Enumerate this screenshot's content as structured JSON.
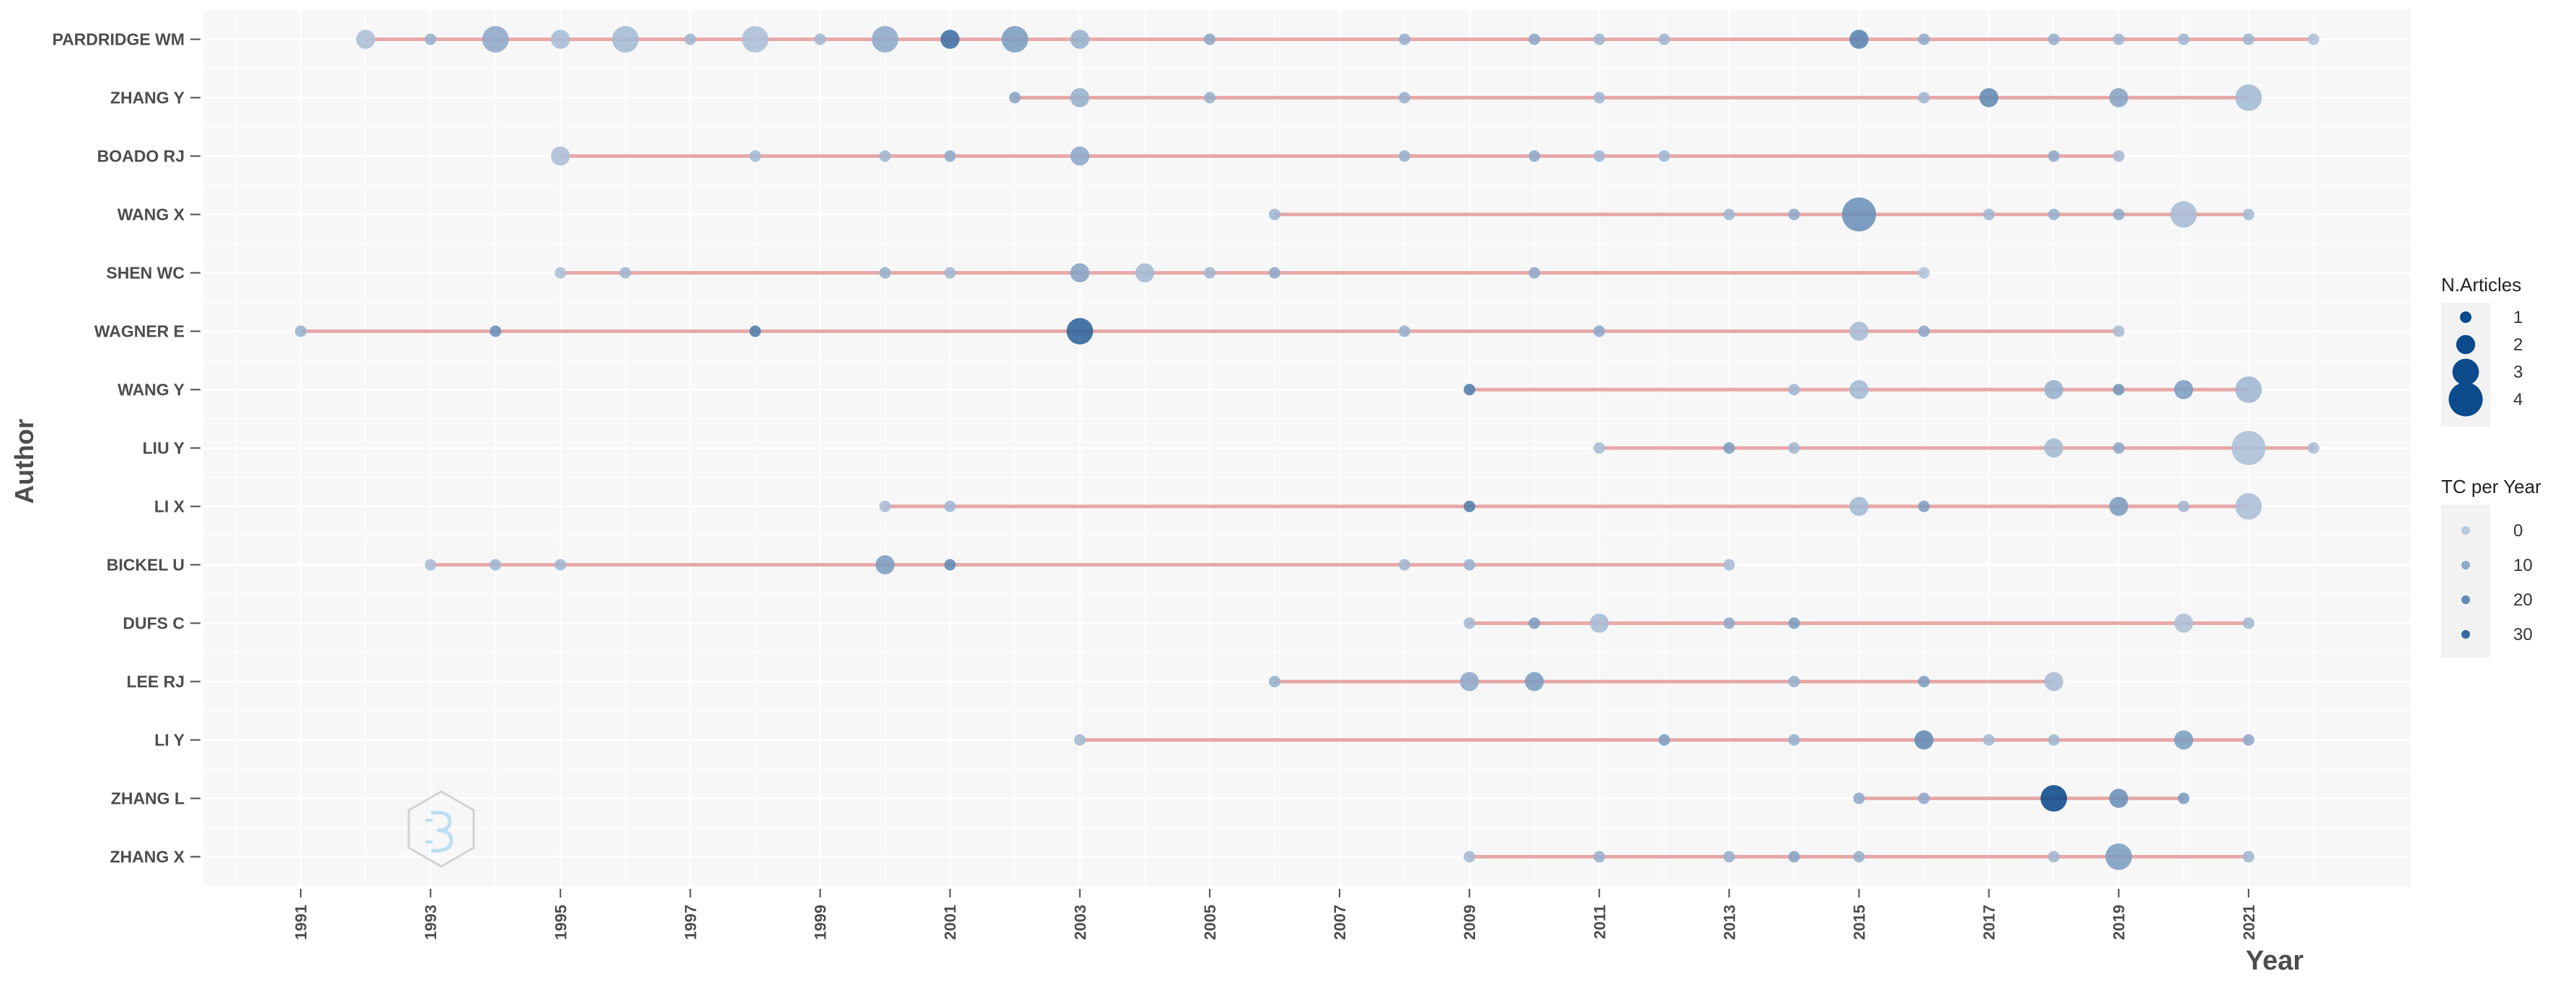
{
  "chart_data": {
    "type": "scatter",
    "title": "",
    "xlabel": "Year",
    "ylabel": "Author",
    "xlim": [
      1989.5,
      2023.5
    ],
    "x_ticks": [
      1991,
      1993,
      1995,
      1997,
      1999,
      2001,
      2003,
      2005,
      2007,
      2009,
      2011,
      2013,
      2015,
      2017,
      2019,
      2021
    ],
    "grid": true,
    "colors": {
      "segment": "#e8a9a9",
      "point_dark": "#0b4a8b",
      "point_light": "#b9c9dd",
      "panel_bg": "#f7f7f7",
      "grid": "#ffffff"
    },
    "legend": {
      "size_title": "N.Articles",
      "size_entries": [
        1,
        2,
        3,
        4
      ],
      "color_title": "TC per Year",
      "color_entries": [
        0,
        10,
        20,
        30
      ],
      "position": "right"
    },
    "authors": [
      {
        "name": "PARDRIDGE WM",
        "start": 1992,
        "end": 2022,
        "points": [
          {
            "year": 1992,
            "n": 2,
            "tc": 3
          },
          {
            "year": 1993,
            "n": 1,
            "tc": 8
          },
          {
            "year": 1994,
            "n": 3,
            "tc": 10
          },
          {
            "year": 1995,
            "n": 2,
            "tc": 4
          },
          {
            "year": 1996,
            "n": 3,
            "tc": 5
          },
          {
            "year": 1997,
            "n": 1,
            "tc": 6
          },
          {
            "year": 1998,
            "n": 3,
            "tc": 3
          },
          {
            "year": 1999,
            "n": 1,
            "tc": 5
          },
          {
            "year": 2000,
            "n": 3,
            "tc": 10
          },
          {
            "year": 2001,
            "n": 2,
            "tc": 28
          },
          {
            "year": 2002,
            "n": 3,
            "tc": 14
          },
          {
            "year": 2003,
            "n": 2,
            "tc": 8
          },
          {
            "year": 2005,
            "n": 1,
            "tc": 10
          },
          {
            "year": 2008,
            "n": 1,
            "tc": 8
          },
          {
            "year": 2010,
            "n": 1,
            "tc": 10
          },
          {
            "year": 2011,
            "n": 1,
            "tc": 6
          },
          {
            "year": 2012,
            "n": 1,
            "tc": 6
          },
          {
            "year": 2015,
            "n": 2,
            "tc": 22
          },
          {
            "year": 2016,
            "n": 1,
            "tc": 10
          },
          {
            "year": 2018,
            "n": 1,
            "tc": 8
          },
          {
            "year": 2019,
            "n": 1,
            "tc": 6
          },
          {
            "year": 2020,
            "n": 1,
            "tc": 6
          },
          {
            "year": 2021,
            "n": 1,
            "tc": 6
          },
          {
            "year": 2022,
            "n": 1,
            "tc": 2
          }
        ]
      },
      {
        "name": "ZHANG Y",
        "start": 2002,
        "end": 2021,
        "points": [
          {
            "year": 2002,
            "n": 1,
            "tc": 12
          },
          {
            "year": 2003,
            "n": 2,
            "tc": 8
          },
          {
            "year": 2005,
            "n": 1,
            "tc": 8
          },
          {
            "year": 2008,
            "n": 1,
            "tc": 8
          },
          {
            "year": 2011,
            "n": 1,
            "tc": 6
          },
          {
            "year": 2016,
            "n": 1,
            "tc": 6
          },
          {
            "year": 2017,
            "n": 2,
            "tc": 20
          },
          {
            "year": 2019,
            "n": 2,
            "tc": 12
          },
          {
            "year": 2021,
            "n": 3,
            "tc": 5
          }
        ]
      },
      {
        "name": "BOADO RJ",
        "start": 1995,
        "end": 2019,
        "points": [
          {
            "year": 1995,
            "n": 2,
            "tc": 3
          },
          {
            "year": 1998,
            "n": 1,
            "tc": 5
          },
          {
            "year": 2000,
            "n": 1,
            "tc": 6
          },
          {
            "year": 2001,
            "n": 1,
            "tc": 10
          },
          {
            "year": 2003,
            "n": 2,
            "tc": 10
          },
          {
            "year": 2008,
            "n": 1,
            "tc": 8
          },
          {
            "year": 2010,
            "n": 1,
            "tc": 10
          },
          {
            "year": 2011,
            "n": 1,
            "tc": 6
          },
          {
            "year": 2012,
            "n": 1,
            "tc": 6
          },
          {
            "year": 2018,
            "n": 1,
            "tc": 10
          },
          {
            "year": 2019,
            "n": 1,
            "tc": 5
          }
        ]
      },
      {
        "name": "WANG X",
        "start": 2006,
        "end": 2021,
        "points": [
          {
            "year": 2006,
            "n": 1,
            "tc": 6
          },
          {
            "year": 2013,
            "n": 1,
            "tc": 6
          },
          {
            "year": 2014,
            "n": 1,
            "tc": 10
          },
          {
            "year": 2015,
            "n": 4,
            "tc": 18
          },
          {
            "year": 2017,
            "n": 1,
            "tc": 6
          },
          {
            "year": 2018,
            "n": 1,
            "tc": 8
          },
          {
            "year": 2019,
            "n": 1,
            "tc": 10
          },
          {
            "year": 2020,
            "n": 3,
            "tc": 4
          },
          {
            "year": 2021,
            "n": 1,
            "tc": 5
          }
        ]
      },
      {
        "name": "SHEN WC",
        "start": 1995,
        "end": 2016,
        "points": [
          {
            "year": 1995,
            "n": 1,
            "tc": 3
          },
          {
            "year": 1996,
            "n": 1,
            "tc": 6
          },
          {
            "year": 2000,
            "n": 1,
            "tc": 8
          },
          {
            "year": 2001,
            "n": 1,
            "tc": 6
          },
          {
            "year": 2003,
            "n": 2,
            "tc": 12
          },
          {
            "year": 2004,
            "n": 2,
            "tc": 5
          },
          {
            "year": 2005,
            "n": 1,
            "tc": 6
          },
          {
            "year": 2006,
            "n": 1,
            "tc": 10
          },
          {
            "year": 2010,
            "n": 1,
            "tc": 10
          },
          {
            "year": 2016,
            "n": 1,
            "tc": 2
          }
        ]
      },
      {
        "name": "WAGNER E",
        "start": 1991,
        "end": 2019,
        "points": [
          {
            "year": 1991,
            "n": 1,
            "tc": 8
          },
          {
            "year": 1994,
            "n": 1,
            "tc": 18
          },
          {
            "year": 1998,
            "n": 1,
            "tc": 24
          },
          {
            "year": 2003,
            "n": 3,
            "tc": 32
          },
          {
            "year": 2008,
            "n": 1,
            "tc": 8
          },
          {
            "year": 2011,
            "n": 1,
            "tc": 10
          },
          {
            "year": 2015,
            "n": 2,
            "tc": 4
          },
          {
            "year": 2016,
            "n": 1,
            "tc": 10
          },
          {
            "year": 2019,
            "n": 1,
            "tc": 4
          }
        ]
      },
      {
        "name": "WANG Y",
        "start": 2009,
        "end": 2021,
        "points": [
          {
            "year": 2009,
            "n": 1,
            "tc": 24
          },
          {
            "year": 2014,
            "n": 1,
            "tc": 6
          },
          {
            "year": 2015,
            "n": 2,
            "tc": 5
          },
          {
            "year": 2018,
            "n": 2,
            "tc": 8
          },
          {
            "year": 2019,
            "n": 1,
            "tc": 16
          },
          {
            "year": 2020,
            "n": 2,
            "tc": 14
          },
          {
            "year": 2021,
            "n": 3,
            "tc": 6
          }
        ]
      },
      {
        "name": "LIU Y",
        "start": 2011,
        "end": 2022,
        "points": [
          {
            "year": 2011,
            "n": 1,
            "tc": 4
          },
          {
            "year": 2013,
            "n": 1,
            "tc": 14
          },
          {
            "year": 2014,
            "n": 1,
            "tc": 6
          },
          {
            "year": 2018,
            "n": 2,
            "tc": 5
          },
          {
            "year": 2019,
            "n": 1,
            "tc": 10
          },
          {
            "year": 2021,
            "n": 4,
            "tc": 3
          },
          {
            "year": 2022,
            "n": 1,
            "tc": 4
          }
        ]
      },
      {
        "name": "LI X",
        "start": 2000,
        "end": 2021,
        "points": [
          {
            "year": 2000,
            "n": 1,
            "tc": 4
          },
          {
            "year": 2001,
            "n": 1,
            "tc": 6
          },
          {
            "year": 2009,
            "n": 1,
            "tc": 24
          },
          {
            "year": 2015,
            "n": 2,
            "tc": 5
          },
          {
            "year": 2016,
            "n": 1,
            "tc": 14
          },
          {
            "year": 2019,
            "n": 2,
            "tc": 14
          },
          {
            "year": 2020,
            "n": 1,
            "tc": 6
          },
          {
            "year": 2021,
            "n": 3,
            "tc": 3
          }
        ]
      },
      {
        "name": "BICKEL U",
        "start": 1993,
        "end": 2013,
        "points": [
          {
            "year": 1993,
            "n": 1,
            "tc": 4
          },
          {
            "year": 1994,
            "n": 1,
            "tc": 6
          },
          {
            "year": 1995,
            "n": 1,
            "tc": 6
          },
          {
            "year": 2000,
            "n": 2,
            "tc": 14
          },
          {
            "year": 2001,
            "n": 1,
            "tc": 20
          },
          {
            "year": 2008,
            "n": 1,
            "tc": 6
          },
          {
            "year": 2009,
            "n": 1,
            "tc": 8
          },
          {
            "year": 2013,
            "n": 1,
            "tc": 4
          }
        ]
      },
      {
        "name": "DUFS C",
        "start": 2009,
        "end": 2021,
        "points": [
          {
            "year": 2009,
            "n": 1,
            "tc": 5
          },
          {
            "year": 2010,
            "n": 1,
            "tc": 14
          },
          {
            "year": 2011,
            "n": 2,
            "tc": 4
          },
          {
            "year": 2013,
            "n": 1,
            "tc": 10
          },
          {
            "year": 2014,
            "n": 1,
            "tc": 14
          },
          {
            "year": 2020,
            "n": 2,
            "tc": 3
          },
          {
            "year": 2021,
            "n": 1,
            "tc": 5
          }
        ]
      },
      {
        "name": "LEE RJ",
        "start": 2006,
        "end": 2018,
        "points": [
          {
            "year": 2006,
            "n": 1,
            "tc": 8
          },
          {
            "year": 2009,
            "n": 2,
            "tc": 10
          },
          {
            "year": 2010,
            "n": 2,
            "tc": 14
          },
          {
            "year": 2014,
            "n": 1,
            "tc": 8
          },
          {
            "year": 2016,
            "n": 1,
            "tc": 14
          },
          {
            "year": 2018,
            "n": 2,
            "tc": 4
          }
        ]
      },
      {
        "name": "LI Y",
        "start": 2003,
        "end": 2021,
        "points": [
          {
            "year": 2003,
            "n": 1,
            "tc": 5
          },
          {
            "year": 2012,
            "n": 1,
            "tc": 14
          },
          {
            "year": 2014,
            "n": 1,
            "tc": 8
          },
          {
            "year": 2016,
            "n": 2,
            "tc": 20
          },
          {
            "year": 2017,
            "n": 1,
            "tc": 5
          },
          {
            "year": 2018,
            "n": 1,
            "tc": 6
          },
          {
            "year": 2020,
            "n": 2,
            "tc": 14
          },
          {
            "year": 2021,
            "n": 1,
            "tc": 10
          }
        ]
      },
      {
        "name": "ZHANG L",
        "start": 2015,
        "end": 2020,
        "points": [
          {
            "year": 2015,
            "n": 1,
            "tc": 10
          },
          {
            "year": 2016,
            "n": 1,
            "tc": 10
          },
          {
            "year": 2018,
            "n": 3,
            "tc": 40
          },
          {
            "year": 2019,
            "n": 2,
            "tc": 18
          },
          {
            "year": 2020,
            "n": 1,
            "tc": 14
          }
        ]
      },
      {
        "name": "ZHANG X",
        "start": 2009,
        "end": 2021,
        "points": [
          {
            "year": 2009,
            "n": 1,
            "tc": 5
          },
          {
            "year": 2011,
            "n": 1,
            "tc": 8
          },
          {
            "year": 2013,
            "n": 1,
            "tc": 8
          },
          {
            "year": 2014,
            "n": 1,
            "tc": 12
          },
          {
            "year": 2015,
            "n": 1,
            "tc": 8
          },
          {
            "year": 2018,
            "n": 1,
            "tc": 6
          },
          {
            "year": 2019,
            "n": 3,
            "tc": 14
          },
          {
            "year": 2021,
            "n": 1,
            "tc": 6
          }
        ]
      }
    ]
  }
}
